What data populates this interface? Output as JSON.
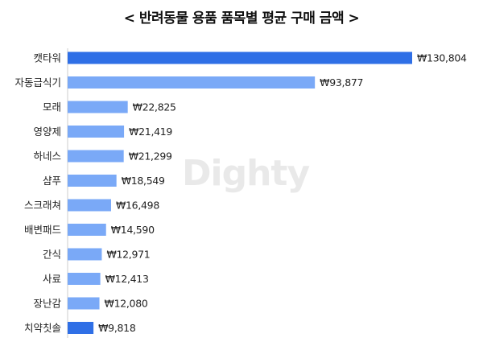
{
  "colors": {
    "highlight": "#2f6fe6",
    "normal": "#7aa9f7",
    "axis": "#cccccc"
  },
  "watermark": "Dighty",
  "chart_data": {
    "type": "bar",
    "orientation": "horizontal",
    "title": "< 반려동물 용품 품목별 평균 구매 금액 >",
    "categories": [
      "캣타워",
      "자동급식기",
      "모래",
      "영양제",
      "하네스",
      "샴푸",
      "스크래쳐",
      "배변패드",
      "간식",
      "사료",
      "장난감",
      "치약칫솔"
    ],
    "values": [
      130804,
      93877,
      22825,
      21419,
      21299,
      18549,
      16498,
      14590,
      12971,
      12413,
      12080,
      9818
    ],
    "value_labels": [
      "₩130,804",
      "₩93,877",
      "₩22,825",
      "₩21,419",
      "₩21,299",
      "₩18,549",
      "₩16,498",
      "₩14,590",
      "₩12,971",
      "₩12,413",
      "₩12,080",
      "₩9,818"
    ],
    "highlighted": [
      "캣타워",
      "치약칫솔"
    ],
    "xlim": [
      0,
      130804
    ],
    "grid": false,
    "legend": "none"
  }
}
